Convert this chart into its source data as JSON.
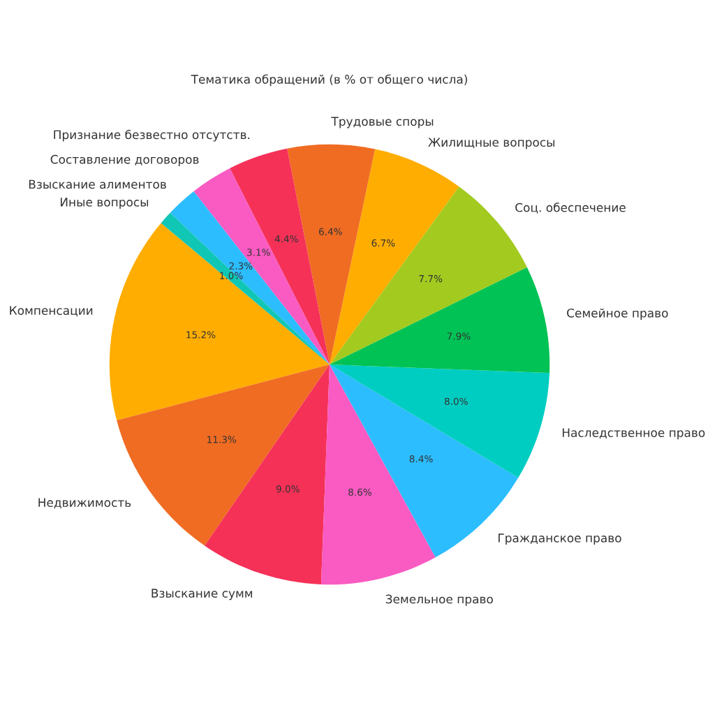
{
  "chart_data": {
    "type": "pie",
    "title": "Тематика обращений (в % от общего числа)",
    "categories": [
      "Компенсации",
      "Недвижимость",
      "Взыскание сумм",
      "Земельное право",
      "Гражданское право",
      "Наследственное право",
      "Семейное право",
      "Соц. обеспечение",
      "Жилищные вопросы",
      "Трудовые споры",
      "Признание безвестно отсутств.",
      "Составление договоров",
      "Взыскание алиментов",
      "Иные вопросы"
    ],
    "values": [
      15.2,
      11.3,
      9.0,
      8.6,
      8.4,
      8.0,
      7.9,
      7.7,
      6.7,
      6.4,
      4.4,
      3.1,
      2.3,
      1.0
    ],
    "value_labels": [
      "15.2%",
      "11.3%",
      "9.0%",
      "8.6%",
      "8.4%",
      "8.0%",
      "7.9%",
      "7.7%",
      "6.7%",
      "6.4%",
      "4.4%",
      "3.1%",
      "2.3%",
      "1.0%"
    ],
    "colors": [
      "#ffad00",
      "#f06c23",
      "#f53158",
      "#f95bc2",
      "#2cbdfe",
      "#00cdc2",
      "#00c255",
      "#a2ca1f",
      "#ffad00",
      "#f06c23",
      "#f53158",
      "#f95bc2",
      "#2cbdfe",
      "#10c6b4"
    ]
  }
}
